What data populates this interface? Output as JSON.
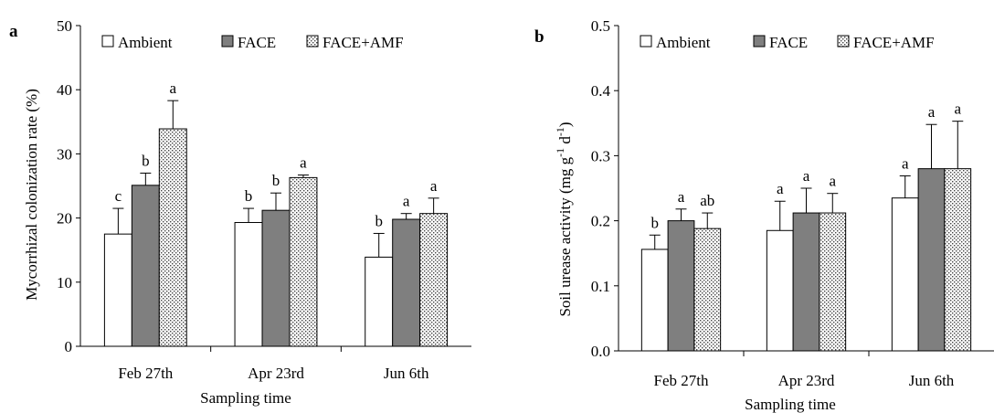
{
  "chart_data": [
    {
      "panel_label": "a",
      "type": "bar",
      "categories": [
        "Feb 27th",
        "Apr 23rd",
        "Jun 6th"
      ],
      "series": [
        {
          "name": "Ambient",
          "values": [
            17.5,
            19.3,
            13.9
          ],
          "errors": [
            4.0,
            2.2,
            3.7
          ],
          "letters": [
            "c",
            "b",
            "b"
          ],
          "fill": "#ffffff"
        },
        {
          "name": "FACE",
          "values": [
            25.1,
            21.2,
            19.8
          ],
          "errors": [
            1.9,
            2.7,
            0.9
          ],
          "letters": [
            "b",
            "b",
            "a"
          ],
          "fill": "#7f7f7f"
        },
        {
          "name": "FACE+AMF",
          "values": [
            33.9,
            26.3,
            20.7
          ],
          "errors": [
            4.4,
            0.4,
            2.4
          ],
          "letters": [
            "a",
            "a",
            "a"
          ],
          "fill": "dotted"
        }
      ],
      "ylabel": "Mycorrhizal colonization rate (%)",
      "xlabel": "Sampling time",
      "ylim": [
        0,
        50
      ],
      "yticks": [
        "0",
        "10",
        "20",
        "30",
        "40",
        "50"
      ],
      "legend": "top",
      "grid": false
    },
    {
      "panel_label": "b",
      "type": "bar",
      "categories": [
        "Feb 27th",
        "Apr 23rd",
        "Jun 6th"
      ],
      "series": [
        {
          "name": "Ambient",
          "values": [
            0.156,
            0.185,
            0.235
          ],
          "errors": [
            0.022,
            0.045,
            0.034
          ],
          "letters": [
            "b",
            "a",
            "a"
          ],
          "fill": "#ffffff"
        },
        {
          "name": "FACE",
          "values": [
            0.2,
            0.212,
            0.28
          ],
          "errors": [
            0.018,
            0.038,
            0.068
          ],
          "letters": [
            "a",
            "a",
            "a"
          ],
          "fill": "#7f7f7f"
        },
        {
          "name": "FACE+AMF",
          "values": [
            0.188,
            0.212,
            0.28
          ],
          "errors": [
            0.024,
            0.03,
            0.073
          ],
          "letters": [
            "ab",
            "a",
            "a"
          ],
          "fill": "dotted"
        }
      ],
      "ylabel_parts": [
        "Soil urease activity (mg g",
        "-1",
        " d",
        "-1",
        ")"
      ],
      "xlabel": "Sampling time",
      "ylim": [
        0,
        0.5
      ],
      "yticks": [
        "0.0",
        "0.1",
        "0.2",
        "0.3",
        "0.4",
        "0.5"
      ],
      "legend": "top",
      "grid": false
    }
  ]
}
